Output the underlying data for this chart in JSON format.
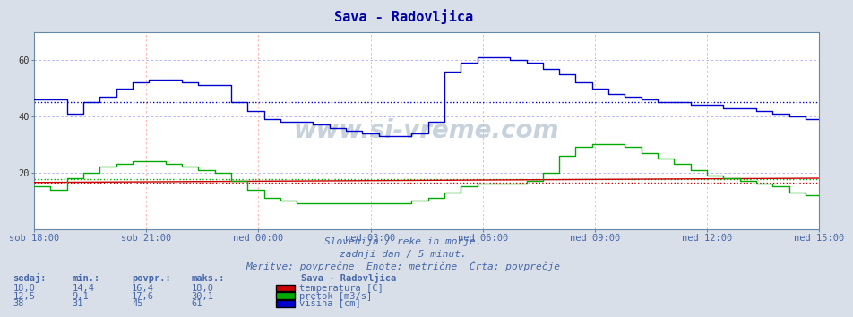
{
  "title": "Sava - Radovljica",
  "bg_color": "#d8dfe8",
  "plot_bg_color": "#ffffff",
  "grid_color_h": "#aaaaff",
  "grid_color_v": "#ffaaaa",
  "title_color": "#0000aa",
  "text_color": "#4466aa",
  "xlabel_color": "#4466aa",
  "ylim": [
    0,
    70
  ],
  "yticks": [
    20,
    40,
    60
  ],
  "xtick_labels": [
    "sob 18:00",
    "sob 21:00",
    "ned 00:00",
    "ned 03:00",
    "ned 06:00",
    "ned 09:00",
    "ned 12:00",
    "ned 15:00"
  ],
  "avg_temp": 16.4,
  "avg_pretok": 17.6,
  "avg_visina": 45,
  "subtitle1": "Slovenija / reke in morje.",
  "subtitle2": "zadnji dan / 5 minut.",
  "subtitle3": "Meritve: povprečne  Enote: metrične  Črta: povprečje",
  "legend_title": "Sava - Radovljica",
  "legend_items": [
    {
      "label": "temperatura [C]",
      "color": "#cc0000"
    },
    {
      "label": "pretok [m3/s]",
      "color": "#00aa00"
    },
    {
      "label": "višina [cm]",
      "color": "#0000cc"
    }
  ],
  "table_headers": [
    "sedaj:",
    "min.:",
    "povpr.:",
    "maks.:"
  ],
  "table_data": [
    [
      "18,0",
      "14,4",
      "16,4",
      "18,0"
    ],
    [
      "12,5",
      "9,1",
      "17,6",
      "30,1"
    ],
    [
      "38",
      "31",
      "45",
      "61"
    ]
  ],
  "watermark": "www.si-vreme.com",
  "watermark_color": "#aabbcc"
}
